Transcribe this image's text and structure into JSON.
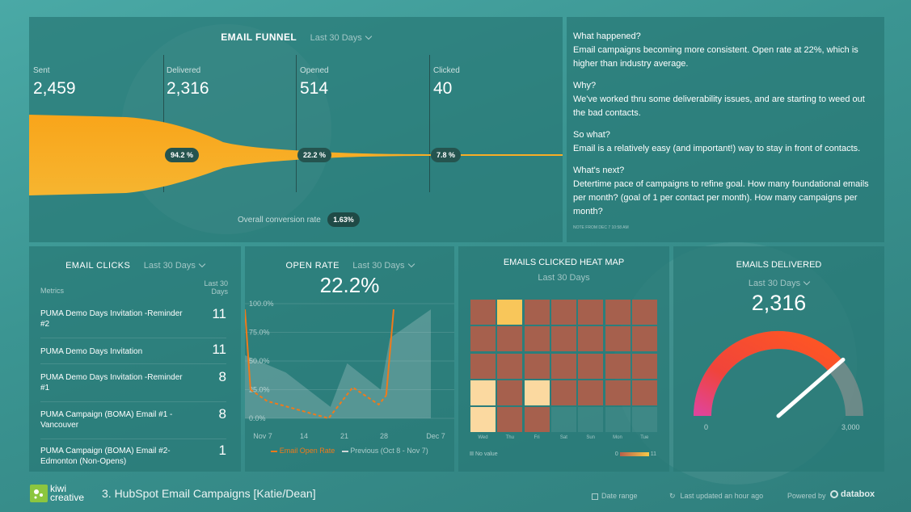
{
  "funnel": {
    "title": "EMAIL FUNNEL",
    "range": "Last 30 Days",
    "stages": [
      {
        "label": "Sent",
        "value": "2,459"
      },
      {
        "label": "Delivered",
        "value": "2,316"
      },
      {
        "label": "Opened",
        "value": "514"
      },
      {
        "label": "Clicked",
        "value": "40"
      }
    ],
    "rates": [
      "94.2 %",
      "22.2 %",
      "7.8 %"
    ],
    "conversion_label": "Overall conversion rate",
    "conversion_value": "1.63%",
    "color": "#f7a715"
  },
  "notes": {
    "q1": "What happened?",
    "a1": "Email campaigns becoming more consistent. Open rate at 22%, which is higher than industry average.",
    "q2": "Why?",
    "a2": "We've worked thru some deliverability issues, and are starting to weed out the bad contacts.",
    "q3": "So what?",
    "a3": "Email is a relatively easy (and important!) way to stay in front of contacts.",
    "q4": "What's next?",
    "a4": "Detertime pace of campaigns to refine goal. How many foundational emails per month? (goal of 1 per contact per month). How many campaigns per month?",
    "footnote": "NOTE FROM DEC 7 10:58 AM"
  },
  "clicks": {
    "title": "EMAIL CLICKS",
    "range": "Last 30 Days",
    "col_metrics": "Metrics",
    "col_period": "Last 30 Days",
    "rows": [
      {
        "name": "PUMA Demo Days Invitation -Reminder #2",
        "value": "11"
      },
      {
        "name": "PUMA Demo Days Invitation",
        "value": "11"
      },
      {
        "name": "PUMA Demo Days Invitation -Reminder #1",
        "value": "8"
      },
      {
        "name": "PUMA Campaign (BOMA) Email #1 - Vancouver",
        "value": "8"
      },
      {
        "name": "PUMA Campaign (BOMA) Email #2- Edmonton (Non-Opens)",
        "value": "1"
      }
    ]
  },
  "open_rate": {
    "title": "OPEN RATE",
    "range": "Last 30 Days",
    "value": "22.2%",
    "y_ticks": [
      "100.0%",
      "75.0%",
      "50.0%",
      "25.0%",
      "0.0%"
    ],
    "x_ticks": [
      "Nov 7",
      "14",
      "21",
      "28",
      "Dec 7"
    ],
    "legend_current": "Email Open Rate",
    "legend_previous": "Previous (Oct 8 - Nov 7)",
    "current_color": "#f07a1a",
    "previous_color": "#cfd8d8"
  },
  "heatmap": {
    "title": "EMAILS CLICKED HEAT MAP",
    "range": "Last 30 Days",
    "days": [
      "Wed",
      "Thu",
      "Fri",
      "Sat",
      "Sun",
      "Mon",
      "Tue"
    ],
    "legend_no_value": "No value",
    "legend_min": "0",
    "legend_max": "11"
  },
  "delivered": {
    "title": "EMAILS DELIVERED",
    "range": "Last 30 Days",
    "value": "2,316",
    "min": "0",
    "max": "3,000",
    "fraction": 0.772
  },
  "footer": {
    "logo_top": "kiwi",
    "logo_bottom": "creative",
    "title": "3. HubSpot Email Campaigns [Katie/Dean]",
    "date_range": "Date range",
    "updated": "Last updated an hour ago",
    "powered": "Powered by",
    "brand": "databox"
  },
  "chart_data": [
    {
      "type": "line",
      "title": "OPEN RATE",
      "x": [
        "Nov 7",
        "14",
        "21",
        "28",
        "Dec 7"
      ],
      "ylim": [
        0,
        100
      ],
      "series": [
        {
          "name": "Email Open Rate",
          "points": [
            [
              0,
              95
            ],
            [
              0.03,
              25
            ],
            [
              0.12,
              15
            ],
            [
              0.45,
              0
            ],
            [
              0.58,
              27
            ],
            [
              0.72,
              12
            ],
            [
              0.76,
              20
            ],
            [
              0.8,
              95
            ]
          ]
        },
        {
          "name": "Previous (Oct 8 - Nov 7)",
          "points": [
            [
              0,
              55
            ],
            [
              0.22,
              40
            ],
            [
              0.46,
              10
            ],
            [
              0.55,
              48
            ],
            [
              0.73,
              25
            ],
            [
              0.78,
              70
            ],
            [
              1.0,
              95
            ]
          ]
        }
      ]
    },
    {
      "type": "heatmap",
      "title": "EMAILS CLICKED HEAT MAP",
      "columns": [
        "Wed",
        "Thu",
        "Fri",
        "Sat",
        "Sun",
        "Mon",
        "Tue"
      ],
      "range": [
        0,
        11
      ],
      "cells": [
        [
          1,
          6,
          1,
          1,
          1,
          1,
          1
        ],
        [
          1,
          1,
          1,
          1,
          1,
          1,
          1
        ],
        [
          1,
          1,
          1,
          1,
          1,
          1,
          1
        ],
        [
          8,
          1,
          7,
          1,
          1,
          1,
          1
        ],
        [
          8,
          1,
          1,
          null,
          null,
          null,
          null
        ]
      ]
    },
    {
      "type": "bar",
      "title": "EMAILS DELIVERED",
      "values": [
        2316
      ],
      "ylim": [
        0,
        3000
      ]
    }
  ]
}
